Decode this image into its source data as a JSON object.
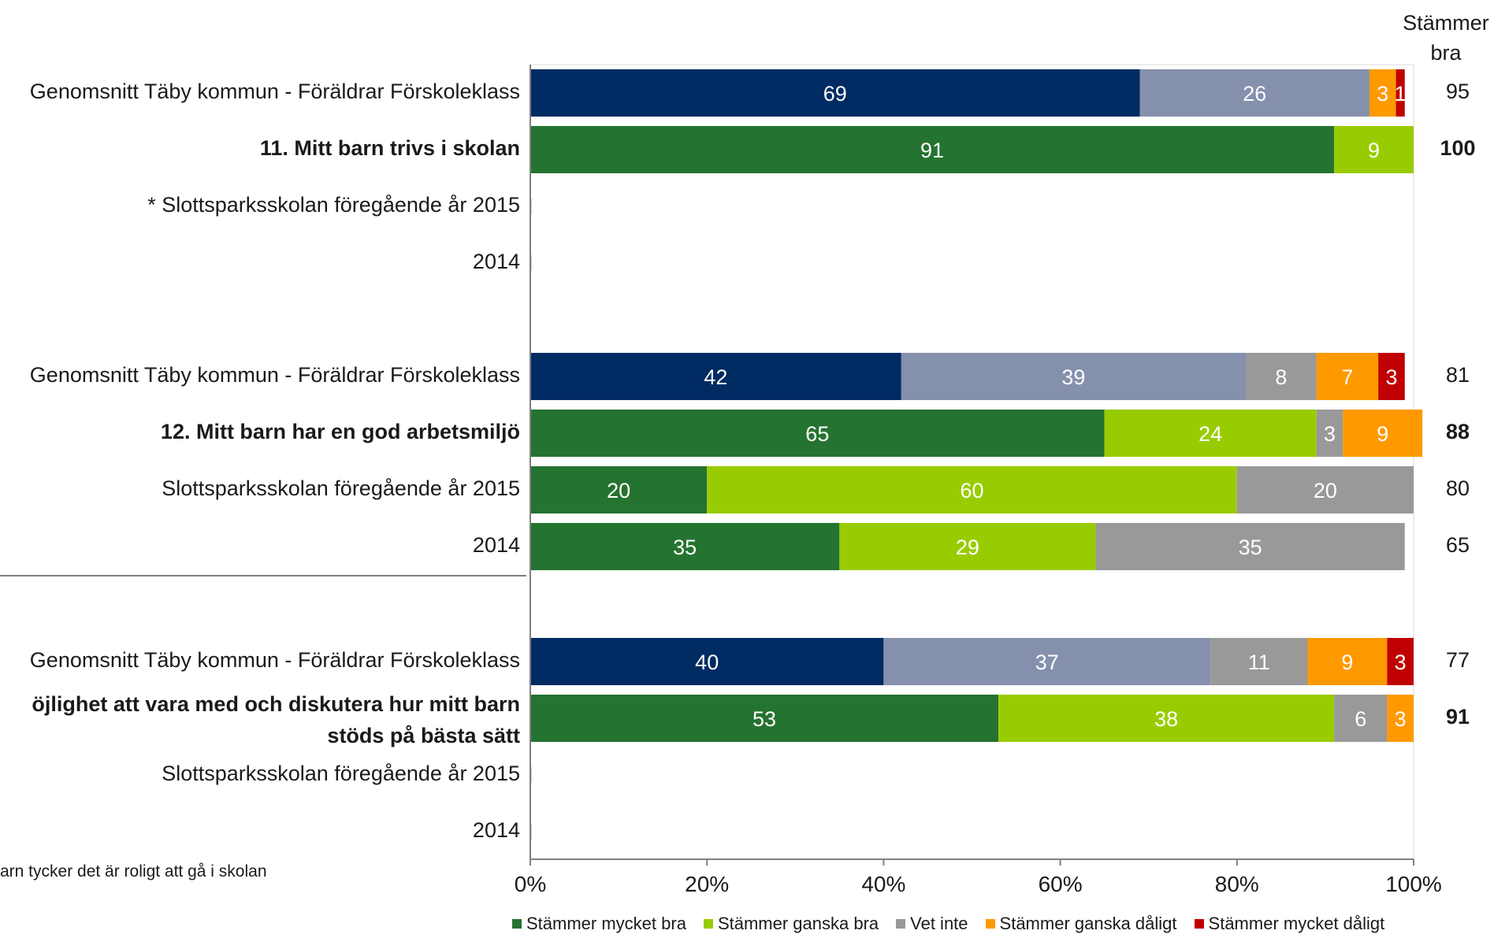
{
  "header": {
    "line1": "Stämmer",
    "line2": "bra"
  },
  "footnote": "arn tycker det är roligt att gå i skolan",
  "colors": {
    "avg_very_good": "#002B63",
    "avg_rather_good": "#8590AC",
    "very_good": "#257330",
    "rather_good": "#99CC00",
    "dont_know": "#999999",
    "rather_bad": "#FF9900",
    "very_bad": "#C00000"
  },
  "chart_data": {
    "type": "bar",
    "orientation": "horizontal",
    "stacked": true,
    "percent": true,
    "xlim": [
      0,
      100
    ],
    "xticks": [
      "0%",
      "20%",
      "40%",
      "60%",
      "80%",
      "100%"
    ],
    "legend_position": "bottom",
    "legend": [
      {
        "name": "Stämmer mycket bra",
        "color": "#257330"
      },
      {
        "name": "Stämmer ganska bra",
        "color": "#99CC00"
      },
      {
        "name": "Vet inte",
        "color": "#999999"
      },
      {
        "name": "Stämmer ganska dåligt",
        "color": "#FF9900"
      },
      {
        "name": "Stämmer mycket dåligt",
        "color": "#C00000"
      }
    ],
    "rows": [
      {
        "label": "Genomsnitt Täby kommun - Föräldrar Förskoleklass",
        "bold": false,
        "style": "avg",
        "values": [
          69,
          26,
          0,
          3,
          1
        ],
        "total": "95"
      },
      {
        "label": "11. Mitt barn trivs i skolan",
        "bold": true,
        "style": "school",
        "values": [
          91,
          9,
          0,
          0,
          0
        ],
        "total": "100"
      },
      {
        "label": "* Slottsparksskolan föregående år 2015",
        "bold": false,
        "style": "school",
        "values": [
          0,
          0,
          0,
          0,
          0
        ],
        "total": ""
      },
      {
        "label": "2014",
        "bold": false,
        "style": "school",
        "values": [
          0,
          0,
          0,
          0,
          0
        ],
        "total": ""
      },
      {
        "label": "Genomsnitt Täby kommun - Föräldrar Förskoleklass",
        "bold": false,
        "style": "avg",
        "values": [
          42,
          39,
          8,
          7,
          3
        ],
        "total": "81"
      },
      {
        "label": "12. Mitt barn har en god arbetsmiljö",
        "bold": true,
        "style": "school",
        "values": [
          65,
          24,
          3,
          9,
          0
        ],
        "total": "88"
      },
      {
        "label": "Slottsparksskolan föregående år 2015",
        "bold": false,
        "style": "school",
        "values": [
          20,
          60,
          20,
          0,
          0
        ],
        "total": "80"
      },
      {
        "label": "2014",
        "bold": false,
        "style": "school",
        "values": [
          35,
          29,
          35,
          0,
          0
        ],
        "total": "65"
      },
      {
        "label": "Genomsnitt Täby kommun - Föräldrar Förskoleklass",
        "bold": false,
        "style": "avg",
        "values": [
          40,
          37,
          11,
          9,
          3
        ],
        "total": "77"
      },
      {
        "label": "öjlighet att vara med och diskutera hur mitt barn",
        "label2": "stöds på bästa sätt",
        "bold": true,
        "style": "school",
        "values": [
          53,
          38,
          6,
          3,
          0
        ],
        "total": "91"
      },
      {
        "label": "Slottsparksskolan föregående år 2015",
        "bold": false,
        "style": "school",
        "values": [
          0,
          0,
          0,
          0,
          0
        ],
        "total": ""
      },
      {
        "label": "2014",
        "bold": false,
        "style": "school",
        "values": [
          0,
          0,
          0,
          0,
          0
        ],
        "total": ""
      }
    ]
  }
}
